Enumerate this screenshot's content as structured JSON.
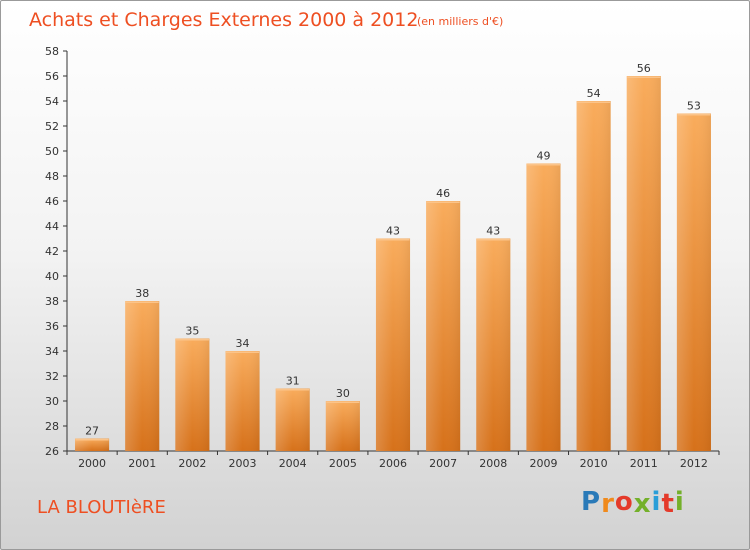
{
  "title": "Achats et Charges Externes 2000 à 2012",
  "subtitle": "(en milliers d'€)",
  "commune": "LA BLOUTIèRE",
  "logo": {
    "letters": [
      "P",
      "r",
      "o",
      "x",
      "i",
      "t",
      "i"
    ],
    "colors": [
      "#2a7ab8",
      "#f08a1c",
      "#e43a2a",
      "#74b02a",
      "#2a9ed8",
      "#e43a2a",
      "#74b02a"
    ]
  },
  "colors": {
    "bar_light": "#f8a858",
    "bar_dark": "#d8741c",
    "text": "#ee4f22"
  },
  "chart_data": {
    "type": "bar",
    "title": "Achats et Charges Externes 2000 à 2012",
    "subtitle": "(en milliers d'€)",
    "categories": [
      "2000",
      "2001",
      "2002",
      "2003",
      "2004",
      "2005",
      "2006",
      "2007",
      "2008",
      "2009",
      "2010",
      "2011",
      "2012"
    ],
    "values": [
      27,
      38,
      35,
      34,
      31,
      30,
      43,
      46,
      43,
      49,
      54,
      56,
      53
    ],
    "ylim": [
      26,
      58
    ],
    "yticks": [
      26,
      28,
      30,
      32,
      34,
      36,
      38,
      40,
      42,
      44,
      46,
      48,
      50,
      52,
      54,
      56,
      58
    ],
    "grid": false,
    "legend": "none"
  }
}
